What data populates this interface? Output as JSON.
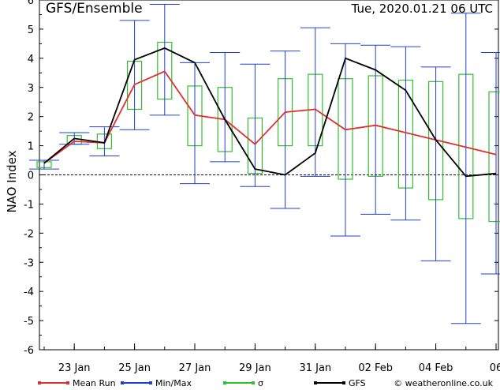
{
  "chart_data": {
    "type": "line",
    "title": "GFS/Ensemble",
    "subtitle": "Tue, 2020.01.21   06 UTC",
    "ylabel": "NAO Index",
    "xlabel": "",
    "ylim": [
      -6,
      6
    ],
    "yticks": [
      -6,
      -5,
      -4,
      -3,
      -2,
      -1,
      0,
      1,
      2,
      3,
      4,
      5,
      6
    ],
    "xticks": [
      {
        "day": 1,
        "label": "23 Jan"
      },
      {
        "day": 3,
        "label": "25 Jan"
      },
      {
        "day": 5,
        "label": "27 Jan"
      },
      {
        "day": 7,
        "label": "29 Jan"
      },
      {
        "day": 9,
        "label": "31 Jan"
      },
      {
        "day": 11,
        "label": "02 Feb"
      },
      {
        "day": 13,
        "label": "04 Feb"
      },
      {
        "day": 15,
        "label": "06"
      }
    ],
    "x": [
      0,
      1,
      2,
      3,
      4,
      5,
      6,
      7,
      8,
      9,
      10,
      11,
      12,
      13,
      14,
      15
    ],
    "series": [
      {
        "name": "Mean Run",
        "color": "#e03030",
        "values": [
          0.4,
          1.15,
          1.1,
          3.1,
          3.55,
          2.05,
          1.9,
          1.05,
          2.15,
          2.25,
          1.55,
          1.7,
          1.45,
          1.2,
          0.95,
          0.7
        ]
      },
      {
        "name": "GFS",
        "color": "#000000",
        "values": [
          0.4,
          1.25,
          1.1,
          3.95,
          4.35,
          3.85,
          1.9,
          0.2,
          0.0,
          0.75,
          4.0,
          3.6,
          2.9,
          1.2,
          -0.05,
          0.05
        ]
      }
    ],
    "minmax": {
      "name": "Min/Max",
      "color": "#2040d0",
      "min": [
        0.2,
        1.05,
        0.65,
        1.55,
        2.05,
        -0.3,
        0.45,
        -0.4,
        -1.15,
        -0.05,
        -2.1,
        -1.35,
        -1.55,
        -2.95,
        -5.1,
        -3.4
      ],
      "max": [
        0.5,
        1.45,
        1.65,
        5.3,
        5.85,
        3.85,
        4.2,
        3.8,
        4.25,
        5.05,
        4.5,
        4.45,
        4.4,
        3.7,
        5.55,
        4.2
      ]
    },
    "sigma": {
      "name": "σ",
      "color": "#30c030",
      "low": [
        0.25,
        1.05,
        0.9,
        2.25,
        2.6,
        1.0,
        0.8,
        0.05,
        1.0,
        1.0,
        -0.15,
        -0.05,
        -0.45,
        -0.85,
        -1.5,
        -1.6
      ],
      "high": [
        0.45,
        1.35,
        1.4,
        3.9,
        4.55,
        3.05,
        3.0,
        1.95,
        3.3,
        3.45,
        3.3,
        3.4,
        3.25,
        3.2,
        3.45,
        2.85
      ]
    },
    "legend": [
      {
        "name": "Mean Run",
        "color": "#e03030"
      },
      {
        "name": "Min/Max",
        "color": "#2040d0"
      },
      {
        "name": "σ",
        "color": "#30c030"
      },
      {
        "name": "GFS",
        "color": "#000000"
      }
    ],
    "legend_placement": "bottom",
    "source": "© weatheronline.co.uk",
    "grid": false
  }
}
